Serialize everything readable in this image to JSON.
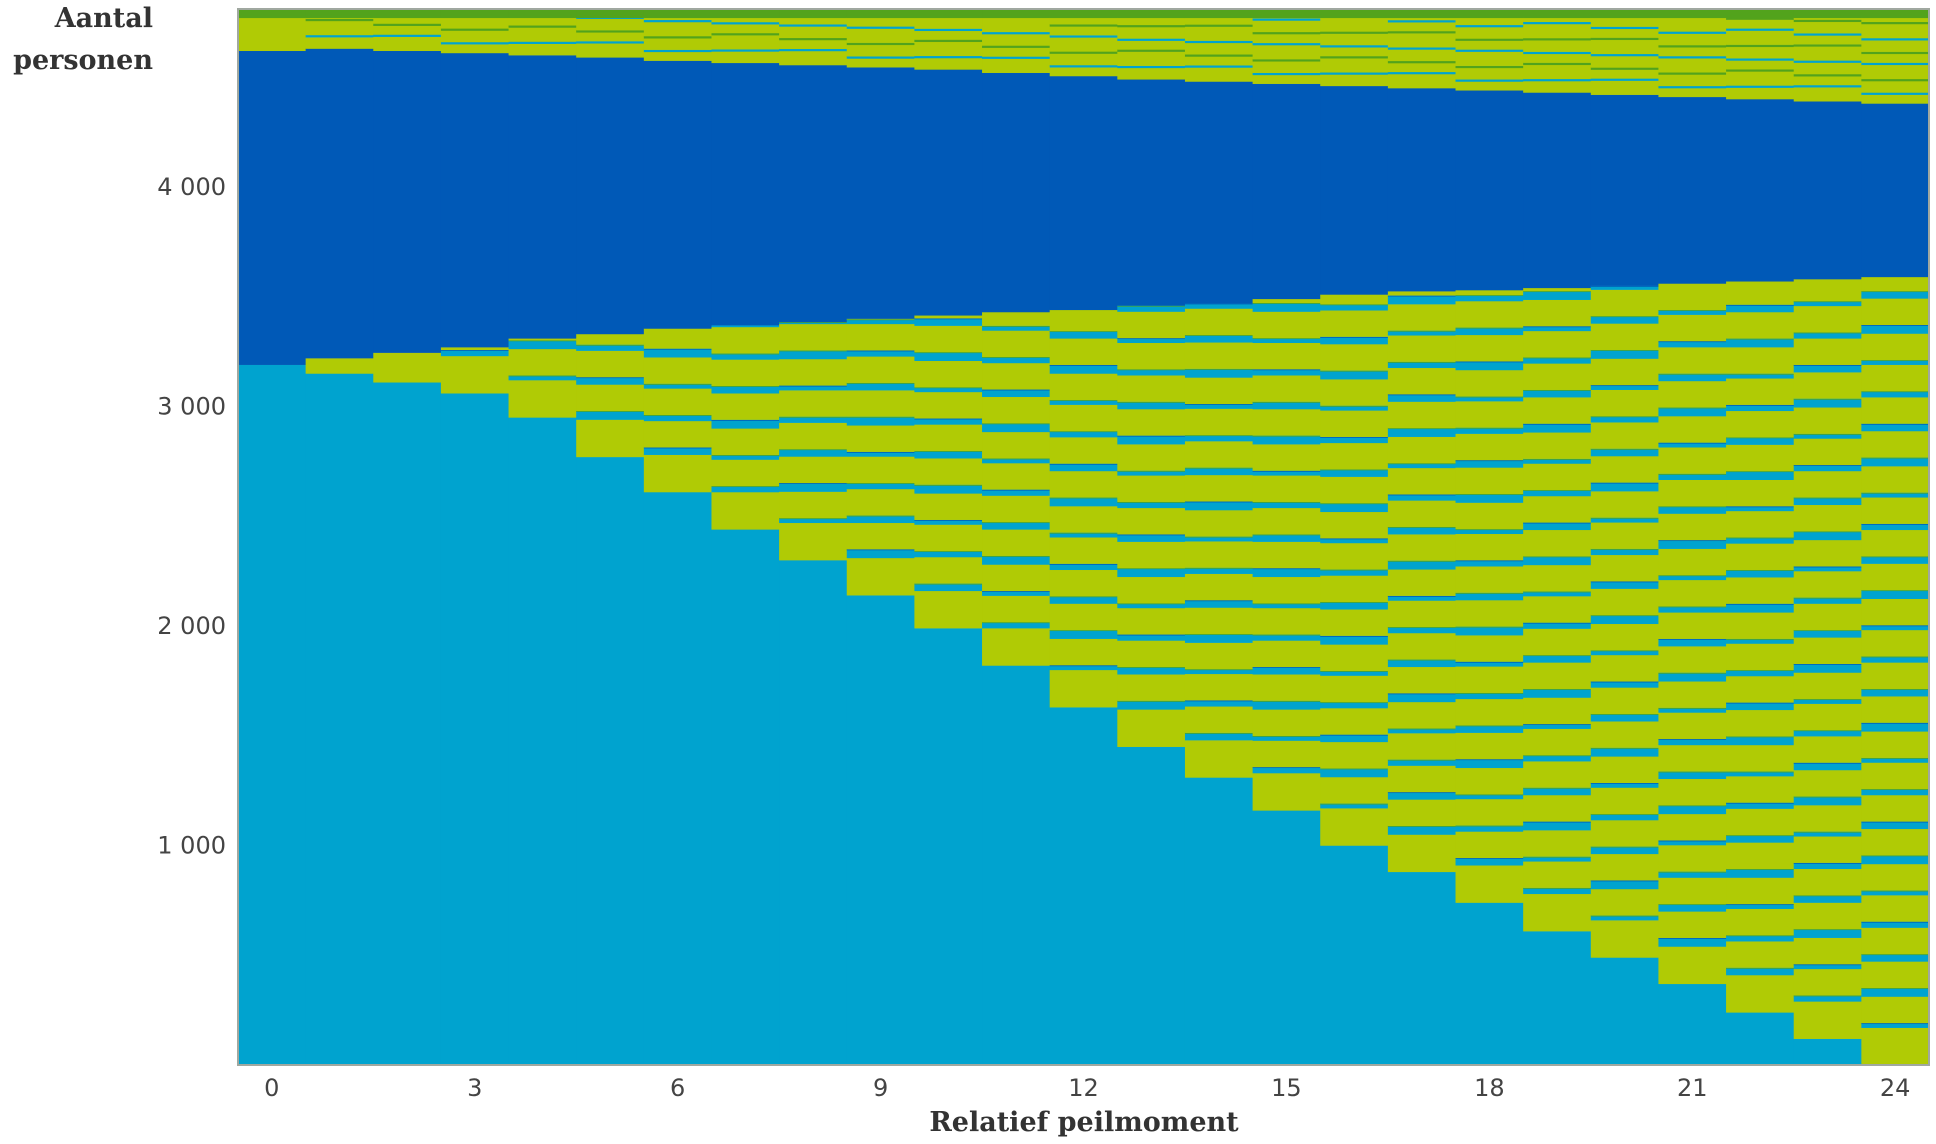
{
  "chart_data": {
    "type": "area",
    "subtype": "stacked sequence index plot",
    "ylabel_line1": "Aantal",
    "ylabel_line2": "personen",
    "xlabel": "Relatief peilmoment",
    "x_ticks": [
      "0",
      "3",
      "6",
      "9",
      "12",
      "15",
      "18",
      "21",
      "24"
    ],
    "x_tick_values": [
      0,
      3,
      6,
      9,
      12,
      15,
      18,
      21,
      24
    ],
    "y_ticks": [
      "1 000",
      "2 000",
      "3 000",
      "4 000"
    ],
    "y_tick_values": [
      1000,
      2000,
      3000,
      4000
    ],
    "xlim": [
      -0.5,
      24.5
    ],
    "ylim": [
      0,
      4810
    ],
    "colors": {
      "light_blue": "#00a3cf",
      "yellow_green": "#b0cb05",
      "dark_blue": "#0059b7",
      "green": "#52a31c",
      "frame": "#a0a8a0"
    },
    "months": [
      0,
      1,
      2,
      3,
      4,
      5,
      6,
      7,
      8,
      9,
      10,
      11,
      12,
      13,
      14,
      15,
      16,
      17,
      18,
      19,
      20,
      21,
      22,
      23,
      24
    ],
    "light_blue_base": [
      3190,
      3150,
      3110,
      3060,
      2950,
      2770,
      2610,
      2440,
      2300,
      2140,
      1990,
      1820,
      1630,
      1450,
      1310,
      1160,
      1000,
      880,
      740,
      610,
      490,
      370,
      240,
      120,
      0
    ],
    "dark_blue_bottom": [
      3190,
      3220,
      3245,
      3270,
      3310,
      3330,
      3355,
      3370,
      3385,
      3400,
      3415,
      3430,
      3440,
      3460,
      3470,
      3490,
      3510,
      3525,
      3530,
      3540,
      3550,
      3560,
      3570,
      3580,
      3590
    ],
    "dark_blue_top": [
      4620,
      4630,
      4620,
      4610,
      4600,
      4590,
      4575,
      4565,
      4555,
      4545,
      4535,
      4520,
      4505,
      4490,
      4480,
      4470,
      4460,
      4450,
      4440,
      4430,
      4420,
      4410,
      4400,
      4390,
      4380
    ],
    "total": 4810
  }
}
